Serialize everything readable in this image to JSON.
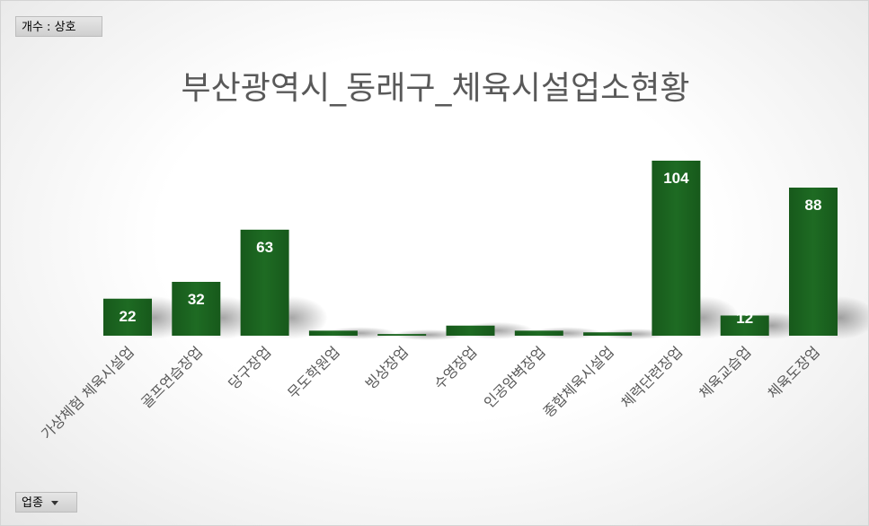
{
  "pivot": {
    "value_field": "개수 : 상호",
    "axis_field": "업종"
  },
  "chart_data": {
    "type": "bar",
    "title": "부산광역시_동래구_체육시설업소현황",
    "categories": [
      "가상체험 체육시설업",
      "골프연습장업",
      "당구장업",
      "무도학원업",
      "빙상장업",
      "수영장업",
      "인공암벽장업",
      "종합체육시설업",
      "체력단련장업",
      "체육교습업",
      "체육도장업"
    ],
    "values": [
      22,
      32,
      63,
      3,
      1,
      6,
      3,
      2,
      104,
      12,
      88
    ],
    "ylim": [
      0,
      120
    ],
    "grid": false,
    "legend": "none",
    "bar_color": "#1e6b23",
    "label_color": "#ffffff"
  }
}
